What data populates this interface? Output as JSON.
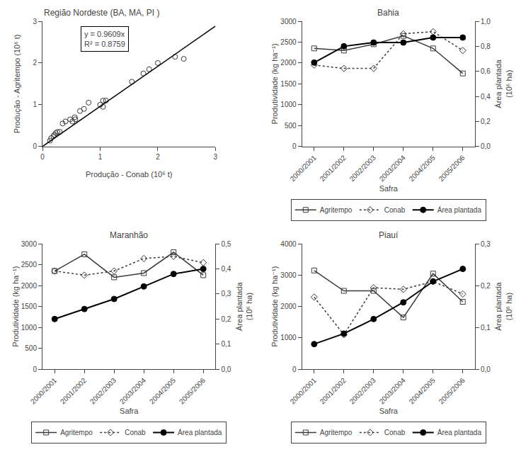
{
  "chart_data": [
    {
      "type": "scatter",
      "title": "Região Nordeste (BA, MA, PI )",
      "x_label": "Produção - Conab (10⁶ t)",
      "y_label": "Produção - Agritempo (10⁶ t)",
      "series": [
        {
          "type": "scatter",
          "color": "#3a3a3a",
          "marker": "circle-open",
          "x": [
            0.13,
            0.15,
            0.19,
            0.21,
            0.23,
            0.26,
            0.3,
            0.35,
            0.4,
            0.48,
            0.52,
            0.56,
            0.57,
            0.65,
            0.72,
            0.8,
            1.0,
            1.05,
            1.05,
            1.1,
            1.55,
            1.75,
            1.85,
            2.0,
            2.3,
            2.45
          ],
          "values": [
            0.14,
            0.2,
            0.25,
            0.28,
            0.32,
            0.35,
            0.35,
            0.55,
            0.6,
            0.65,
            0.6,
            0.7,
            0.65,
            0.85,
            0.9,
            1.05,
            1.0,
            1.1,
            0.95,
            1.1,
            1.55,
            1.75,
            1.85,
            2.0,
            2.15,
            2.1
          ]
        },
        {
          "type": "line",
          "color": "black",
          "line_style": "solid",
          "x": [
            0,
            3
          ],
          "values": [
            0,
            2.8827
          ]
        }
      ],
      "annotations": [
        "y = 0.9609x\nR² = 0.8759"
      ],
      "xlim": [
        0,
        3
      ],
      "ylim": [
        0,
        3
      ],
      "xticks": [
        0,
        1,
        2,
        3
      ],
      "yticks": [
        0,
        1,
        2,
        3
      ],
      "grid": false
    },
    {
      "type": "line",
      "title": "Bahia",
      "x_label": "Safra",
      "y_label": "Produtividade (kg ha⁻¹)",
      "y2_label": "Área plantada\n(10⁶ ha)",
      "categories": [
        "2000/2001",
        "2001/2002",
        "2002/2003",
        "2003/2004",
        "2004/2005",
        "2005/2006"
      ],
      "series": [
        {
          "name": "Agritempo",
          "color": "#3a3a3a",
          "marker": "square-open",
          "line_style": "solid",
          "values": [
            2350,
            2300,
            2450,
            2650,
            2350,
            1750
          ]
        },
        {
          "name": "Conab",
          "color": "#3a3a3a",
          "marker": "diamond-open",
          "line_style": "dotted",
          "values": [
            1950,
            1870,
            1870,
            2700,
            2750,
            2300
          ]
        },
        {
          "name": "Área plantada",
          "color": "black",
          "marker": "circle",
          "line_style": "solid",
          "axis": "y2",
          "values": [
            0.67,
            0.8,
            0.83,
            0.83,
            0.87,
            0.87
          ]
        }
      ],
      "ylim": [
        0,
        3000
      ],
      "yticks": [
        0,
        500,
        1000,
        1500,
        2000,
        2500,
        3000
      ],
      "y2lim": [
        0.0,
        1.0
      ],
      "y2ticks": [
        {
          "value": 0.0,
          "label": "0,0"
        },
        {
          "value": 0.2,
          "label": "0,2"
        },
        {
          "value": 0.4,
          "label": "0,4"
        },
        {
          "value": 0.6,
          "label": "0,6"
        },
        {
          "value": 0.8,
          "label": "0,8"
        },
        {
          "value": 1.0,
          "label": "1,0"
        }
      ],
      "legend": "bottom",
      "grid": false
    },
    {
      "type": "line",
      "title": "Maranhão",
      "x_label": "Safra",
      "y_label": "Produtividade (kg ha⁻¹)",
      "y2_label": "Área plantada\n(10⁶ ha)",
      "categories": [
        "2000/2001",
        "2001/2002",
        "2002/2003",
        "2003/2004",
        "2004/2005",
        "2005/2006"
      ],
      "series": [
        {
          "name": "Agritempo",
          "color": "#3a3a3a",
          "marker": "square-open",
          "line_style": "solid",
          "values": [
            2350,
            2750,
            2200,
            2300,
            2800,
            2250
          ]
        },
        {
          "name": "Conab",
          "color": "#3a3a3a",
          "marker": "diamond-open",
          "line_style": "dotted",
          "values": [
            2350,
            2250,
            2350,
            2650,
            2700,
            2550
          ]
        },
        {
          "name": "Área plantada",
          "color": "black",
          "marker": "circle",
          "line_style": "solid",
          "axis": "y2",
          "values": [
            0.2,
            0.24,
            0.28,
            0.33,
            0.38,
            0.4
          ]
        }
      ],
      "ylim": [
        0,
        3000
      ],
      "yticks": [
        0,
        500,
        1000,
        1500,
        2000,
        2500,
        3000
      ],
      "y2lim": [
        0.0,
        0.5
      ],
      "y2ticks": [
        {
          "value": 0.0,
          "label": "0,0"
        },
        {
          "value": 0.1,
          "label": "0,1"
        },
        {
          "value": 0.2,
          "label": "0,2"
        },
        {
          "value": 0.3,
          "label": "0,3"
        },
        {
          "value": 0.4,
          "label": "0,4"
        },
        {
          "value": 0.5,
          "label": "0,5"
        }
      ],
      "legend": "bottom",
      "grid": false
    },
    {
      "type": "line",
      "title": "Piauí",
      "x_label": "Safra",
      "y_label": "Produtividade (kg ha⁻¹)",
      "y2_label": "Área plantada\n(10⁶ ha)",
      "categories": [
        "2000/2001",
        "2001/2002",
        "2002/2003",
        "2003/2004",
        "2004/2005",
        "2005/2006"
      ],
      "series": [
        {
          "name": "Agritempo",
          "color": "#3a3a3a",
          "marker": "square-open",
          "line_style": "solid",
          "values": [
            3150,
            2500,
            2500,
            1650,
            3050,
            2150
          ]
        },
        {
          "name": "Conab",
          "color": "#3a3a3a",
          "marker": "diamond-open",
          "line_style": "dotted",
          "values": [
            2300,
            1100,
            2600,
            2550,
            2800,
            2400
          ]
        },
        {
          "name": "Área plantada",
          "color": "black",
          "marker": "circle",
          "line_style": "solid",
          "axis": "y2",
          "values": [
            0.06,
            0.085,
            0.12,
            0.16,
            0.21,
            0.24
          ]
        }
      ],
      "ylim": [
        0,
        4000
      ],
      "yticks": [
        0,
        1000,
        2000,
        3000,
        4000
      ],
      "y2lim": [
        0.0,
        0.3
      ],
      "y2ticks": [
        {
          "value": 0.0,
          "label": "0,0"
        },
        {
          "value": 0.1,
          "label": "0,1"
        },
        {
          "value": 0.2,
          "label": "0,2"
        },
        {
          "value": 0.3,
          "label": "0,3"
        }
      ],
      "legend": "bottom",
      "grid": false
    }
  ]
}
